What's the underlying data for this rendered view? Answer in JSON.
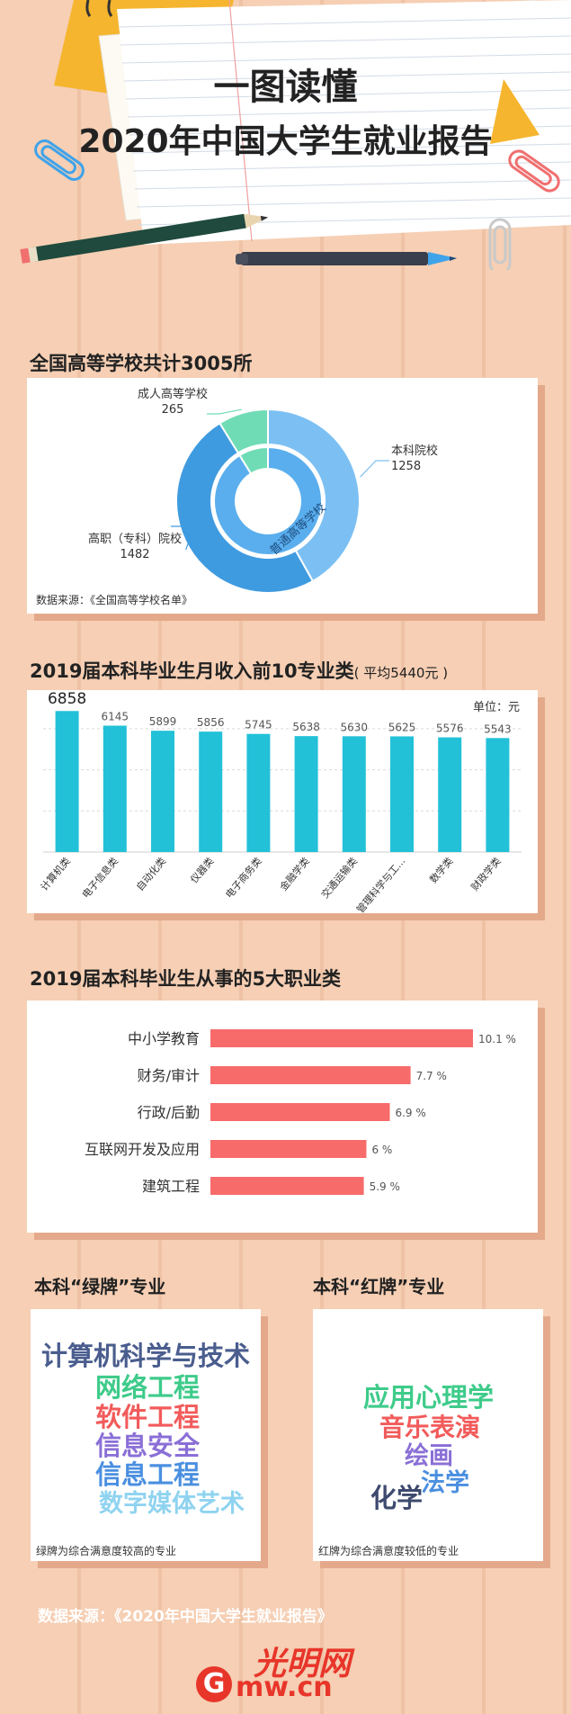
{
  "header": {
    "line1": "一图读懂",
    "line2": "2020年中国大学生就业报告"
  },
  "section1": {
    "title": "全国高等学校共计3005所",
    "source": "数据来源：《全国高等学校名单》"
  },
  "section2": {
    "title": "2019届本科毕业生月收入前10专业类",
    "subtitle": "( 平均5440元 )",
    "unit": "单位：元"
  },
  "section3": {
    "title": "2019届本科毕业生从事的5大职业类"
  },
  "green": {
    "title": "本科“绿牌”专业",
    "items": [
      "计算机科学与技术",
      "网络工程",
      "软件工程",
      "信息安全",
      "信息工程",
      "数字媒体艺术"
    ],
    "note": "绿牌为综合满意度较高的专业"
  },
  "red": {
    "title": "本科“红牌”专业",
    "items": [
      "应用心理学",
      "音乐表演",
      "绘画",
      "法学",
      "化学"
    ],
    "note": "红牌为综合满意度较低的专业"
  },
  "footer": {
    "source": "数据来源：《2020年中国大学生就业报告》",
    "logo_text": "光明网",
    "logo_domain": "mw.cn",
    "logo_letter": "G"
  },
  "colors": {
    "donut_blue_dark": "#3f9be0",
    "donut_blue_light": "#7cc0f3",
    "donut_green": "#6fdcb6",
    "bar_cyan": "#22c1d8",
    "hbar_red": "#f76b6b",
    "green_list": [
      "#4a5d8e",
      "#3ecb8a",
      "#f25b5b",
      "#8a6fd6",
      "#4a8fe0",
      "#8fd3f0"
    ],
    "red_list": [
      "#3ecb8a",
      "#f25b5b",
      "#8a6fd6",
      "#4a8fe0",
      "#3d4a6e"
    ]
  },
  "chart_data": [
    {
      "type": "pie",
      "title": "全国高等学校共计3005所",
      "inner_label": "普通高等学校",
      "slices": [
        {
          "label": "本科院校",
          "value": 1258
        },
        {
          "label": "高职（专科）院校",
          "value": 1482
        },
        {
          "label": "成人高等学校",
          "value": 265
        }
      ]
    },
    {
      "type": "bar",
      "title": "2019届本科毕业生月收入前10专业类",
      "categories": [
        "计算机类",
        "电子信息类",
        "自动化类",
        "仪器类",
        "电子商务类",
        "金融学类",
        "交通运输类",
        "管理科学与工...",
        "数学类",
        "财政学类"
      ],
      "values": [
        6858,
        6145,
        5899,
        5856,
        5745,
        5638,
        5630,
        5625,
        5576,
        5543
      ],
      "unit": "单位：元",
      "ylim": [
        0,
        7000
      ],
      "grid": true
    },
    {
      "type": "bar",
      "orientation": "horizontal",
      "title": "2019届本科毕业生从事的5大职业类",
      "categories": [
        "中小学教育",
        "财务/审计",
        "行政/后勤",
        "互联网开发及应用",
        "建筑工程"
      ],
      "values": [
        10.1,
        7.7,
        6.9,
        6,
        5.9
      ],
      "value_labels": [
        "10.1  %",
        "7.7  %",
        "6.9  %",
        "6  %",
        "5.9  %"
      ],
      "unit": "%"
    }
  ]
}
